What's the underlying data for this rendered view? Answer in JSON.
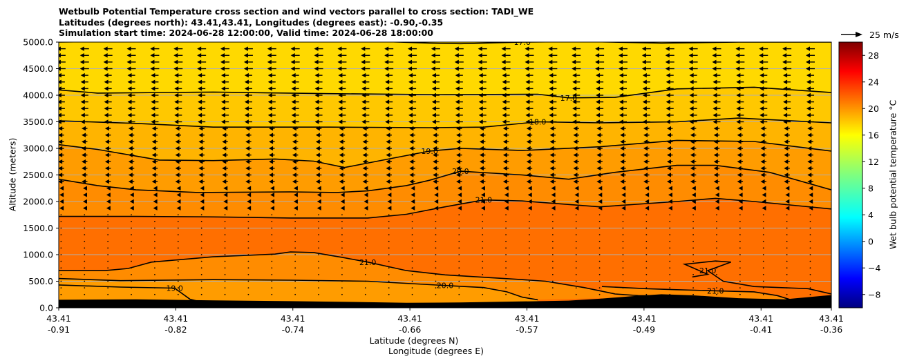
{
  "chart_data": {
    "type": "contour-cross-section",
    "title_lines": [
      "Wetbulb Potential Temperature cross section and wind vectors parallel to cross section: TADI_WE",
      "Latitudes (degrees north): 43.41,43.41, Longitudes (degrees east): -0.90,-0.35",
      "Simulation start time: 2024-06-28 12:00:00, Valid time: 2024-06-28 18:00:00"
    ],
    "ylabel": "Altitude (meters)",
    "xlabel_lat": "Latitude (degrees N)",
    "xlabel_lon": "Longitude (degrees E)",
    "ylim": [
      0,
      5000
    ],
    "y_ticks": [
      "0.0",
      "500.0",
      "1000.0",
      "1500.0",
      "2000.0",
      "2500.0",
      "3000.0",
      "3500.0",
      "4000.0",
      "4500.0",
      "5000.0"
    ],
    "y_tick_values": [
      0,
      500,
      1000,
      1500,
      2000,
      2500,
      3000,
      3500,
      4000,
      4500,
      5000
    ],
    "x_range": [
      0,
      1
    ],
    "x_tick_positions": [
      0,
      0.1515,
      0.303,
      0.4545,
      0.606,
      0.7575,
      0.909,
      1.0
    ],
    "x_tick_lat": [
      "43.41",
      "43.41",
      "43.41",
      "43.41",
      "43.41",
      "43.41",
      "43.41",
      "43.41"
    ],
    "x_tick_lon": [
      "-0.91",
      "-0.82",
      "-0.74",
      "-0.66",
      "-0.57",
      "-0.49",
      "-0.41",
      "-0.36"
    ],
    "colorbar": {
      "label": "Wet bulb potential temperature $^\\circ$C",
      "label_text": "Wet bulb potential temperature °C",
      "range": [
        -10,
        30
      ],
      "ticks": [
        "28",
        "24",
        "20",
        "16",
        "12",
        "8",
        "4",
        "0",
        "−4",
        "−8"
      ],
      "tick_values": [
        28,
        24,
        20,
        16,
        12,
        8,
        4,
        0,
        -4,
        -8
      ]
    },
    "quiver_key": {
      "label": "25 m/s"
    },
    "field_colors": {
      "c16": "#FFD900",
      "c17": "#FFC800",
      "c18": "#FFB400",
      "c19": "#FF9C00",
      "c20": "#FF8C00",
      "c21": "#FF6F00",
      "terrain": "#000000"
    },
    "contours": [
      {
        "level": 17.0,
        "label": "17.0",
        "points": [
          [
            0,
            4100
          ],
          [
            0.05,
            4040
          ],
          [
            0.2,
            4060
          ],
          [
            0.35,
            4030
          ],
          [
            0.5,
            4010
          ],
          [
            0.62,
            4020
          ],
          [
            0.66,
            3950
          ],
          [
            0.72,
            3960
          ],
          [
            0.8,
            4120
          ],
          [
            0.9,
            4150
          ],
          [
            1.0,
            4050
          ]
        ]
      },
      {
        "level": 17.0,
        "label": "17.0",
        "points": [
          [
            0,
            5000
          ],
          [
            0.1,
            5020
          ],
          [
            0.3,
            5040
          ],
          [
            0.42,
            5010
          ],
          [
            0.48,
            4980
          ],
          [
            0.52,
            4970
          ],
          [
            0.6,
            5000
          ],
          [
            0.68,
            5010
          ],
          [
            0.78,
            4980
          ],
          [
            0.88,
            5000
          ],
          [
            1.0,
            5000
          ]
        ]
      },
      {
        "level": 18.0,
        "label": "18.0",
        "points": [
          [
            0,
            3520
          ],
          [
            0.1,
            3470
          ],
          [
            0.2,
            3400
          ],
          [
            0.35,
            3400
          ],
          [
            0.48,
            3390
          ],
          [
            0.55,
            3400
          ],
          [
            0.62,
            3500
          ],
          [
            0.7,
            3480
          ],
          [
            0.8,
            3500
          ],
          [
            0.88,
            3570
          ],
          [
            1.0,
            3480
          ]
        ]
      },
      {
        "level": 19.0,
        "label": "19.0",
        "points": [
          [
            0,
            3070
          ],
          [
            0.05,
            2980
          ],
          [
            0.13,
            2780
          ],
          [
            0.2,
            2770
          ],
          [
            0.28,
            2800
          ],
          [
            0.33,
            2760
          ],
          [
            0.37,
            2640
          ],
          [
            0.42,
            2780
          ],
          [
            0.48,
            2950
          ],
          [
            0.52,
            3000
          ],
          [
            0.6,
            2960
          ],
          [
            0.7,
            3030
          ],
          [
            0.8,
            3150
          ],
          [
            0.9,
            3130
          ],
          [
            1.0,
            2950
          ]
        ]
      },
      {
        "level": 20.0,
        "label": "20.0",
        "points": [
          [
            0,
            2420
          ],
          [
            0.05,
            2300
          ],
          [
            0.1,
            2220
          ],
          [
            0.18,
            2170
          ],
          [
            0.3,
            2180
          ],
          [
            0.36,
            2170
          ],
          [
            0.4,
            2200
          ],
          [
            0.45,
            2300
          ],
          [
            0.48,
            2400
          ],
          [
            0.52,
            2570
          ],
          [
            0.6,
            2500
          ],
          [
            0.66,
            2420
          ],
          [
            0.72,
            2550
          ],
          [
            0.8,
            2680
          ],
          [
            0.85,
            2680
          ],
          [
            0.92,
            2550
          ],
          [
            1.0,
            2220
          ]
        ]
      },
      {
        "level": 21.0,
        "label": "21.0",
        "points": [
          [
            0,
            1720
          ],
          [
            0.1,
            1720
          ],
          [
            0.2,
            1710
          ],
          [
            0.3,
            1690
          ],
          [
            0.4,
            1690
          ],
          [
            0.45,
            1760
          ],
          [
            0.5,
            1900
          ],
          [
            0.55,
            2030
          ],
          [
            0.6,
            2010
          ],
          [
            0.7,
            1900
          ],
          [
            0.8,
            2000
          ],
          [
            0.85,
            2060
          ],
          [
            0.9,
            2000
          ],
          [
            1.0,
            1860
          ]
        ]
      },
      {
        "level": 21.0,
        "label": "21.0",
        "points": [
          [
            0,
            700
          ],
          [
            0.06,
            700
          ],
          [
            0.09,
            740
          ],
          [
            0.12,
            860
          ],
          [
            0.2,
            960
          ],
          [
            0.28,
            1010
          ],
          [
            0.3,
            1050
          ],
          [
            0.33,
            1040
          ],
          [
            0.37,
            940
          ],
          [
            0.4,
            860
          ],
          [
            0.45,
            700
          ],
          [
            0.5,
            620
          ],
          [
            0.6,
            530
          ],
          [
            0.63,
            500
          ],
          [
            0.68,
            380
          ],
          [
            0.72,
            260
          ],
          [
            0.75,
            230
          ],
          [
            0.8,
            220
          ]
        ]
      },
      {
        "level": 20.0,
        "label": "20.0",
        "points": [
          [
            0,
            550
          ],
          [
            0.08,
            510
          ],
          [
            0.2,
            530
          ],
          [
            0.3,
            520
          ],
          [
            0.4,
            500
          ],
          [
            0.5,
            420
          ],
          [
            0.55,
            380
          ],
          [
            0.58,
            300
          ],
          [
            0.6,
            200
          ],
          [
            0.62,
            150
          ]
        ]
      },
      {
        "level": 19.0,
        "label": "19.0",
        "points": [
          [
            0,
            430
          ],
          [
            0.08,
            390
          ],
          [
            0.15,
            370
          ],
          [
            0.17,
            160
          ],
          [
            0.19,
            90
          ]
        ]
      },
      {
        "level": 21.0,
        "label": "21.0",
        "points": [
          [
            0.703,
            400
          ],
          [
            0.76,
            360
          ],
          [
            0.8,
            340
          ],
          [
            0.85,
            320
          ],
          [
            0.9,
            300
          ],
          [
            0.93,
            230
          ],
          [
            0.95,
            140
          ]
        ]
      },
      {
        "level": 21.0,
        "label": "21.0",
        "points": [
          [
            0.82,
            580
          ],
          [
            0.84,
            630
          ],
          [
            0.81,
            820
          ],
          [
            0.85,
            880
          ],
          [
            0.87,
            860
          ],
          [
            0.84,
            700
          ],
          [
            0.86,
            500
          ],
          [
            0.9,
            400
          ],
          [
            0.97,
            360
          ],
          [
            1.0,
            260
          ]
        ]
      }
    ]
  }
}
